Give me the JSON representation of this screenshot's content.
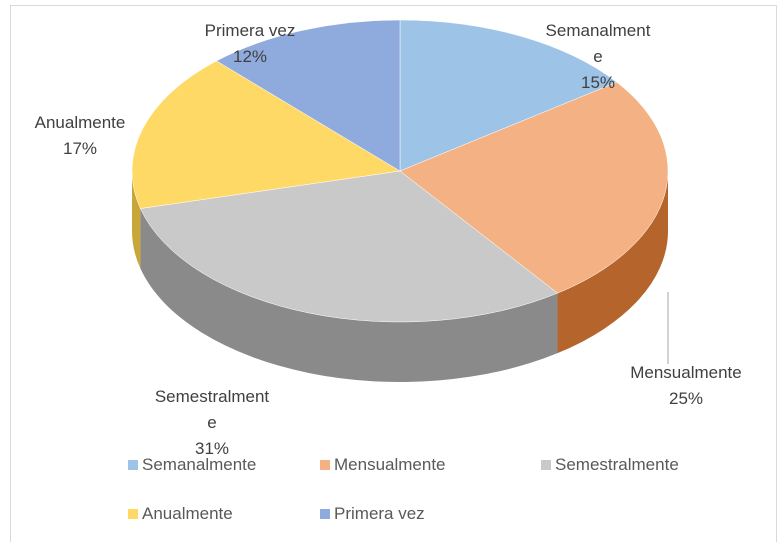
{
  "chart_data": {
    "type": "pie3d",
    "categories": [
      "Semanalmente",
      "Mensualmente",
      "Semestralmente",
      "Anualmente",
      "Primera vez"
    ],
    "values": [
      15,
      25,
      31,
      17,
      12
    ],
    "value_labels": [
      "15%",
      "25%",
      "31%",
      "17%",
      "12%"
    ],
    "colors": [
      "#9dc3e6",
      "#f4b183",
      "#c9c9c9",
      "#ffd966",
      "#8faadc"
    ],
    "side_colors": [
      "#7fa7cc",
      "#b5652c",
      "#8a8a8a",
      "#c9a63a",
      "#6b86b8"
    ],
    "legend": "bottom"
  }
}
